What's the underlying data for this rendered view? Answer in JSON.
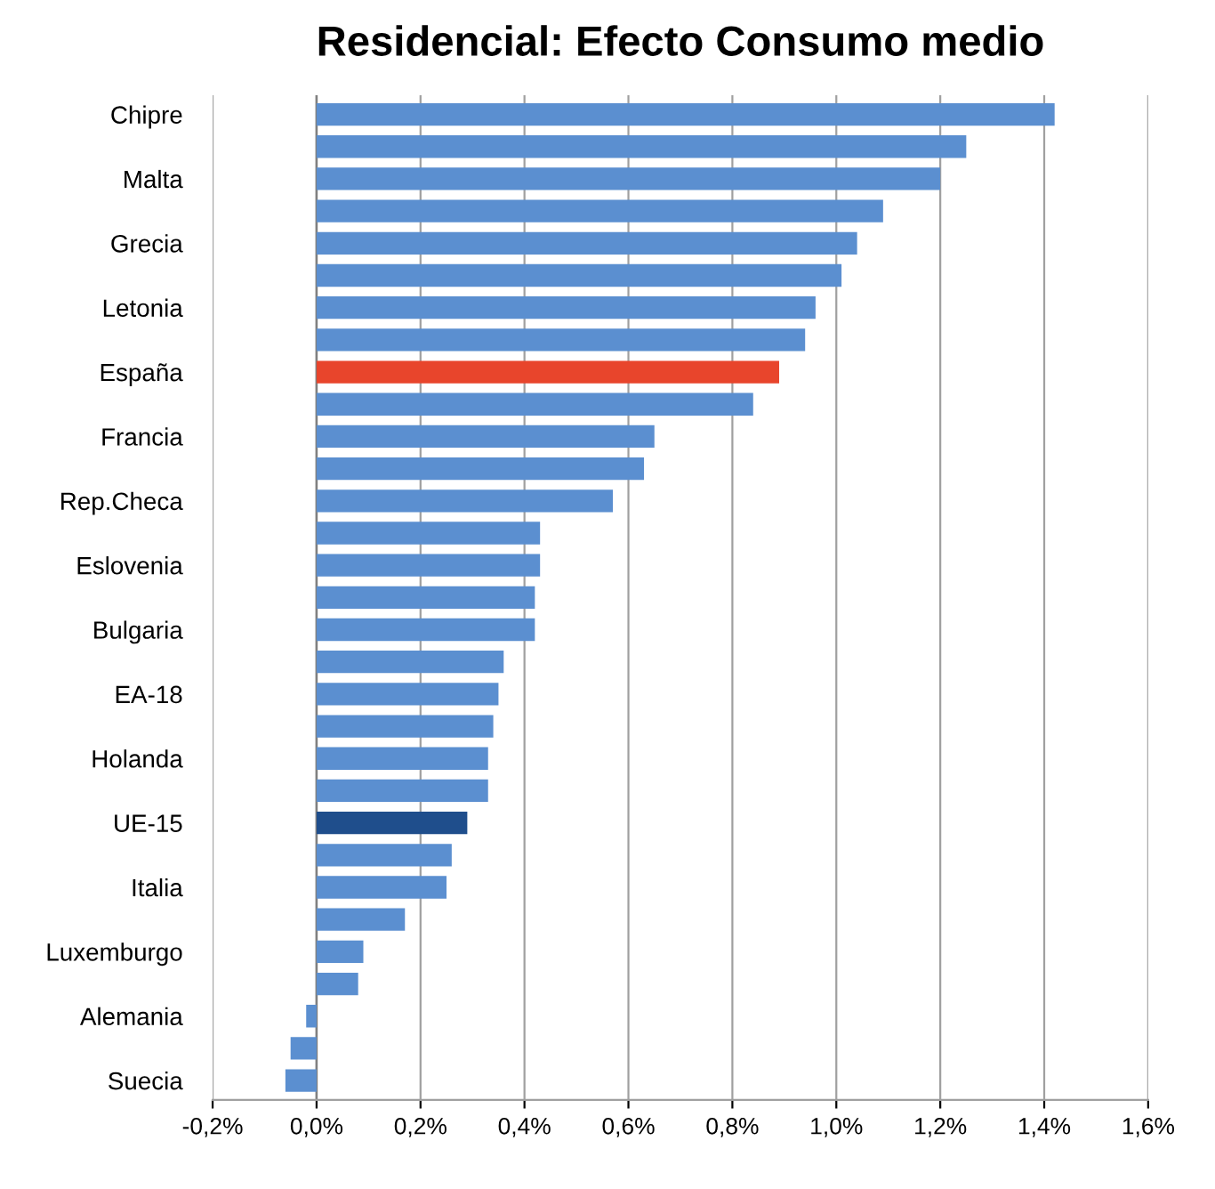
{
  "chart_data": {
    "type": "bar",
    "orientation": "horizontal",
    "title": "Residencial: Efecto Consumo medio",
    "categories": [
      "Chipre",
      null,
      "Malta",
      null,
      "Grecia",
      null,
      "Letonia",
      null,
      "España",
      null,
      "Francia",
      null,
      "Rep.Checa",
      null,
      "Eslovenia",
      null,
      "Bulgaria",
      null,
      "EA-18",
      null,
      "Holanda",
      null,
      "UE-15",
      null,
      "Italia",
      null,
      "Luxemburgo",
      null,
      "Alemania",
      null,
      "Suecia"
    ],
    "values": [
      1.42,
      1.25,
      1.2,
      1.09,
      1.04,
      1.01,
      0.96,
      0.94,
      0.89,
      0.84,
      0.65,
      0.63,
      0.57,
      0.43,
      0.43,
      0.42,
      0.42,
      0.36,
      0.35,
      0.34,
      0.33,
      0.33,
      0.29,
      0.26,
      0.25,
      0.17,
      0.09,
      0.08,
      -0.02,
      -0.05,
      -0.06
    ],
    "colors": [
      "#5b8fd0",
      "#5b8fd0",
      "#5b8fd0",
      "#5b8fd0",
      "#5b8fd0",
      "#5b8fd0",
      "#5b8fd0",
      "#5b8fd0",
      "#e8452c",
      "#5b8fd0",
      "#5b8fd0",
      "#5b8fd0",
      "#5b8fd0",
      "#5b8fd0",
      "#5b8fd0",
      "#5b8fd0",
      "#5b8fd0",
      "#5b8fd0",
      "#5b8fd0",
      "#5b8fd0",
      "#5b8fd0",
      "#5b8fd0",
      "#1f4e8c",
      "#5b8fd0",
      "#5b8fd0",
      "#5b8fd0",
      "#5b8fd0",
      "#5b8fd0",
      "#5b8fd0",
      "#5b8fd0",
      "#5b8fd0"
    ],
    "xlim": [
      -0.2,
      1.6
    ],
    "xticks": [
      {
        "value": -0.2,
        "label": "-0,2%"
      },
      {
        "value": 0,
        "label": "0,0%"
      },
      {
        "value": 0.2,
        "label": "0,2%"
      },
      {
        "value": 0.4,
        "label": "0,4%"
      },
      {
        "value": 0.6,
        "label": "0,6%"
      },
      {
        "value": 0.8,
        "label": "0,8%"
      },
      {
        "value": 1.0,
        "label": "1,0%"
      },
      {
        "value": 1.2,
        "label": "1,2%"
      },
      {
        "value": 1.4,
        "label": "1,4%"
      },
      {
        "value": 1.6,
        "label": "1,6%"
      }
    ],
    "grid": "x",
    "legend": false
  }
}
